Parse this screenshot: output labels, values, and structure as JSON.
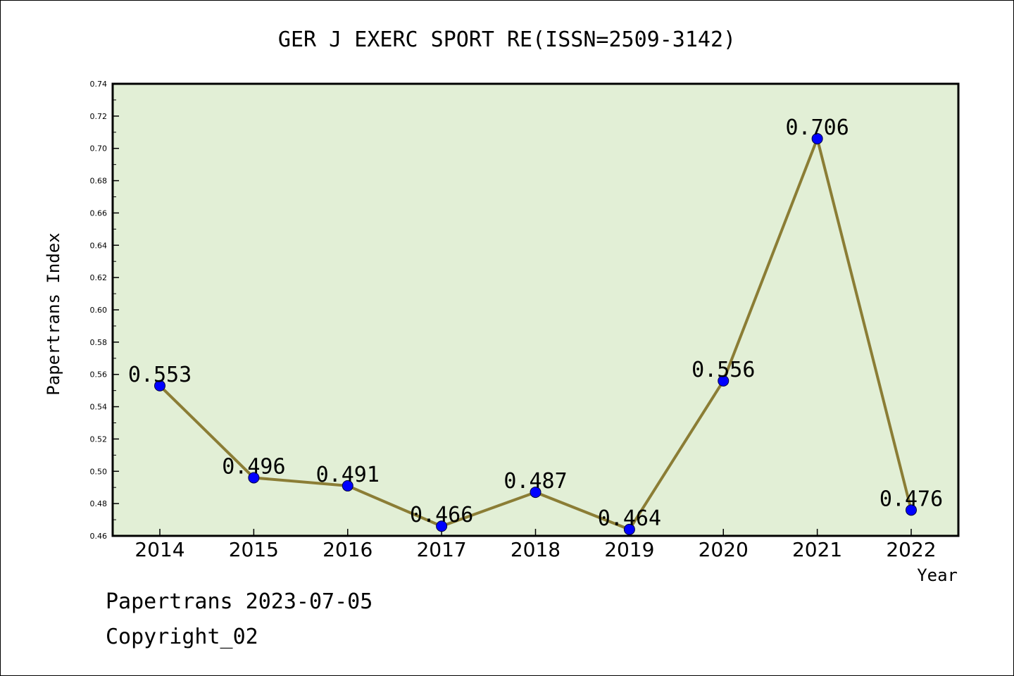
{
  "chart_data": {
    "type": "line",
    "title": "GER J EXERC SPORT RE(ISSN=2509-3142)",
    "xlabel": "Year",
    "ylabel": "Papertrans Index",
    "categories": [
      "2014",
      "2015",
      "2016",
      "2017",
      "2018",
      "2019",
      "2020",
      "2021",
      "2022"
    ],
    "series": [
      {
        "values": [
          0.553,
          0.496,
          0.491,
          0.466,
          0.487,
          0.464,
          0.556,
          0.706,
          0.476
        ],
        "labels": [
          "0.553",
          "0.496",
          "0.491",
          "0.466",
          "0.487",
          "0.464",
          "0.556",
          "0.706",
          "0.476"
        ]
      }
    ],
    "ylim": [
      0.46,
      0.74
    ],
    "yticks": [
      "0.46",
      "0.48",
      "0.50",
      "0.52",
      "0.54",
      "0.56",
      "0.58",
      "0.60",
      "0.62",
      "0.64",
      "0.66",
      "0.68",
      "0.70",
      "0.72",
      "0.74"
    ],
    "grid": false,
    "colors": {
      "plot_background": "#e2efd6",
      "line": "#8b7d35",
      "marker": "#0000ff"
    }
  },
  "footer": {
    "line1": "Papertrans 2023-07-05",
    "line2": "Copyright_02"
  }
}
